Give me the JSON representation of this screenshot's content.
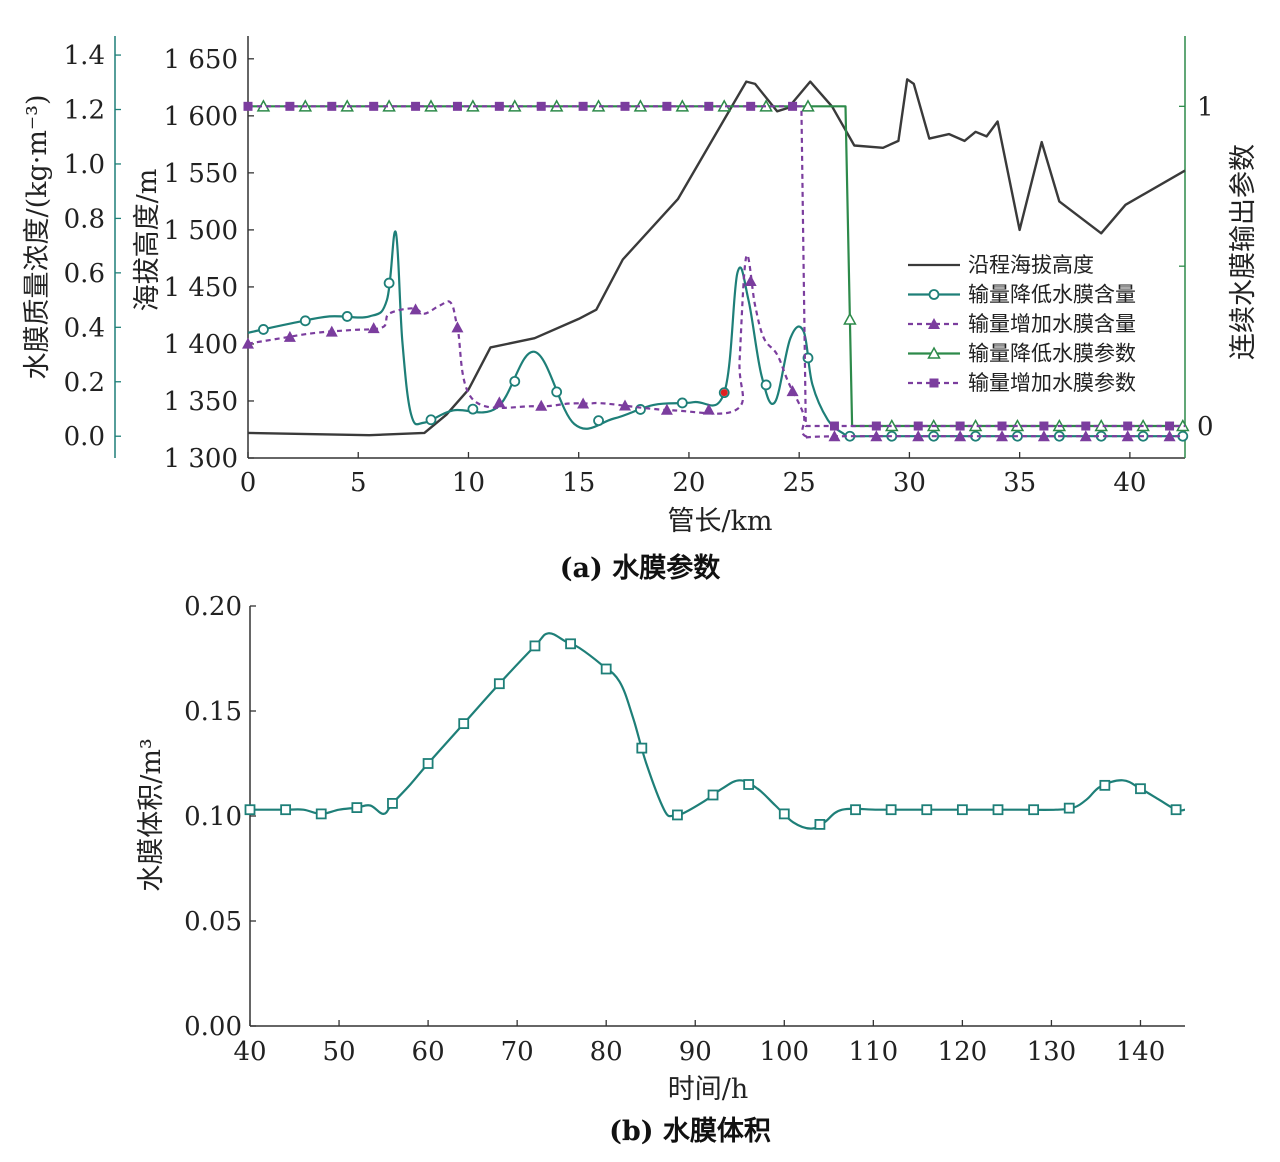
{
  "colors": {
    "elevation": "#3a3a3a",
    "teal": "#1e7f78",
    "purple": "#7b3d9e",
    "green": "#2d8a4a",
    "red_point": "#e02020"
  },
  "chart_data": [
    {
      "type": "line",
      "caption": "(a) 水膜参数",
      "xlabel": "管长/km",
      "xlim": [
        0,
        42.5
      ],
      "xticks": [
        0,
        5,
        10,
        15,
        20,
        25,
        30,
        35,
        40
      ],
      "axes": {
        "left_outer": {
          "label": "水膜质量浓度/(kg·m⁻³)",
          "ylim": [
            -0.08,
            1.47
          ],
          "ticks": [
            "0.0",
            "0.2",
            "0.4",
            "0.6",
            "0.8",
            "1.0",
            "1.2",
            "1.4"
          ]
        },
        "left_inner": {
          "label": "海拔高度/m",
          "ylim": [
            1300,
            1670
          ],
          "ticks": [
            "1 300",
            "1 350",
            "1 400",
            "1 450",
            "1 500",
            "1 550",
            "1 600",
            "1 650"
          ]
        },
        "right": {
          "label": "连续水膜输出参数",
          "ylim": [
            -0.1,
            1.22
          ],
          "ticks": [
            "0",
            "1"
          ]
        }
      },
      "legend_position": "right-middle",
      "series": [
        {
          "name": "沿程海拔高度",
          "axis": "left_inner",
          "style": "solid",
          "color_key": "elevation",
          "x": [
            0,
            5.5,
            8,
            9,
            10,
            11,
            13,
            15,
            15.8,
            17,
            19.5,
            22,
            22.6,
            23,
            24,
            24.5,
            25.5,
            26.5,
            27.5,
            28.8,
            29.5,
            29.9,
            30.2,
            30.9,
            31.8,
            32.5,
            33,
            33.5,
            34,
            35,
            36,
            36.8,
            38.7,
            39.8,
            42.5
          ],
          "y": [
            1322,
            1320,
            1322,
            1338,
            1360,
            1397,
            1405,
            1422,
            1430,
            1474,
            1527,
            1610,
            1630,
            1628,
            1604,
            1607,
            1630,
            1608,
            1574,
            1572,
            1578,
            1632,
            1628,
            1580,
            1584,
            1578,
            1586,
            1582,
            1595,
            1500,
            1577,
            1525,
            1497,
            1522,
            1552
          ]
        },
        {
          "name": "输量降低水膜含量",
          "axis": "left_outer",
          "style": "solid",
          "color_key": "teal",
          "marker": "circle",
          "x": [
            0,
            2,
            3.7,
            5.5,
            6.3,
            6.7,
            7,
            7.4,
            8,
            9.3,
            11.3,
            13,
            14.8,
            16.6,
            18.4,
            20.2,
            21.6,
            22.2,
            22.7,
            23.3,
            23.9,
            24.6,
            25.2,
            25.6,
            26.3,
            27,
            27.3,
            28,
            30.8,
            34.2,
            37.7,
            41.6,
            42.4
          ],
          "y": [
            0.38,
            0.415,
            0.44,
            0.44,
            0.5,
            0.75,
            0.35,
            0.08,
            0.05,
            0.095,
            0.105,
            0.31,
            0.045,
            0.065,
            0.115,
            0.125,
            0.16,
            0.6,
            0.5,
            0.22,
            0.125,
            0.36,
            0.385,
            0.19,
            0.06,
            0.01,
            0.0,
            0.0,
            0.0,
            0.0,
            0.0,
            0.0,
            0.0
          ]
        },
        {
          "name": "输量增加水膜含量",
          "axis": "left_outer",
          "style": "dashed",
          "color_key": "purple",
          "marker": "triangle-filled",
          "x": [
            0,
            1.5,
            3.1,
            4.7,
            6.1,
            6.4,
            7.5,
            8,
            8.7,
            9.2,
            9.5,
            10.2,
            13,
            14.6,
            15.5,
            16.2,
            19.3,
            22.2,
            22.3,
            22.6,
            23,
            23.4,
            24,
            24.5,
            25.2,
            25.3,
            27.3,
            42.4
          ],
          "y": [
            0.34,
            0.36,
            0.38,
            0.39,
            0.4,
            0.45,
            0.47,
            0.45,
            0.48,
            0.49,
            0.4,
            0.135,
            0.11,
            0.12,
            0.12,
            0.12,
            0.095,
            0.1,
            0.28,
            0.66,
            0.48,
            0.36,
            0.3,
            0.2,
            0.08,
            0.0,
            0.0,
            0.0
          ]
        },
        {
          "name": "输量降低水膜参数",
          "axis": "right",
          "style": "solid",
          "color_key": "green",
          "marker": "triangle-open",
          "x": [
            0,
            27.1,
            27.4,
            42.5
          ],
          "y": [
            1,
            1,
            0,
            0
          ]
        },
        {
          "name": "输量增加水膜参数",
          "axis": "right",
          "style": "dashed",
          "color_key": "purple",
          "marker": "square-filled",
          "x": [
            0,
            25.1,
            25.3,
            42.5
          ],
          "y": [
            1,
            1,
            0,
            0
          ]
        }
      ],
      "annotations": [
        {
          "x": 21.6,
          "y": 0.16,
          "axis": "left_outer",
          "marker": "dot",
          "color_key": "red_point"
        }
      ]
    },
    {
      "type": "line",
      "caption": "(b) 水膜体积",
      "xlabel": "时间/h",
      "ylabel": "水膜体积/m³",
      "xlim": [
        40,
        145
      ],
      "ylim": [
        0.0,
        0.2
      ],
      "xticks": [
        40,
        50,
        60,
        70,
        80,
        90,
        100,
        110,
        120,
        130,
        140
      ],
      "yticks": [
        "0.00",
        "0.05",
        "0.10",
        "0.15",
        "0.20"
      ],
      "series": [
        {
          "name": "",
          "color_key": "teal",
          "marker": "square-open",
          "x": [
            40,
            44,
            46,
            48,
            50,
            52,
            53.5,
            55,
            56,
            58,
            60,
            64,
            68,
            72,
            73.5,
            75.5,
            77,
            79.5,
            81.5,
            83,
            84.5,
            86.5,
            87.5,
            88.5,
            91,
            93,
            95,
            97,
            99,
            101,
            103,
            104.5,
            106.5,
            110.5,
            114.5,
            118.5,
            122.5,
            126.5,
            130.5,
            132.5,
            134,
            135.5,
            138,
            140,
            142,
            144,
            145
          ],
          "y": [
            0.103,
            0.103,
            0.103,
            0.101,
            0.103,
            0.104,
            0.105,
            0.101,
            0.106,
            0.115,
            0.125,
            0.144,
            0.163,
            0.181,
            0.187,
            0.183,
            0.18,
            0.172,
            0.164,
            0.147,
            0.125,
            0.103,
            0.1,
            0.101,
            0.107,
            0.113,
            0.117,
            0.113,
            0.105,
            0.097,
            0.094,
            0.097,
            0.103,
            0.103,
            0.103,
            0.103,
            0.103,
            0.103,
            0.103,
            0.104,
            0.108,
            0.114,
            0.117,
            0.113,
            0.108,
            0.103,
            0.103
          ]
        }
      ],
      "marker_x": [
        40,
        44,
        48,
        52,
        56,
        60,
        64,
        68,
        72,
        76,
        80,
        84,
        88,
        92,
        96,
        100,
        104,
        108,
        112,
        116,
        120,
        124,
        128,
        132,
        136,
        140,
        144
      ]
    }
  ]
}
